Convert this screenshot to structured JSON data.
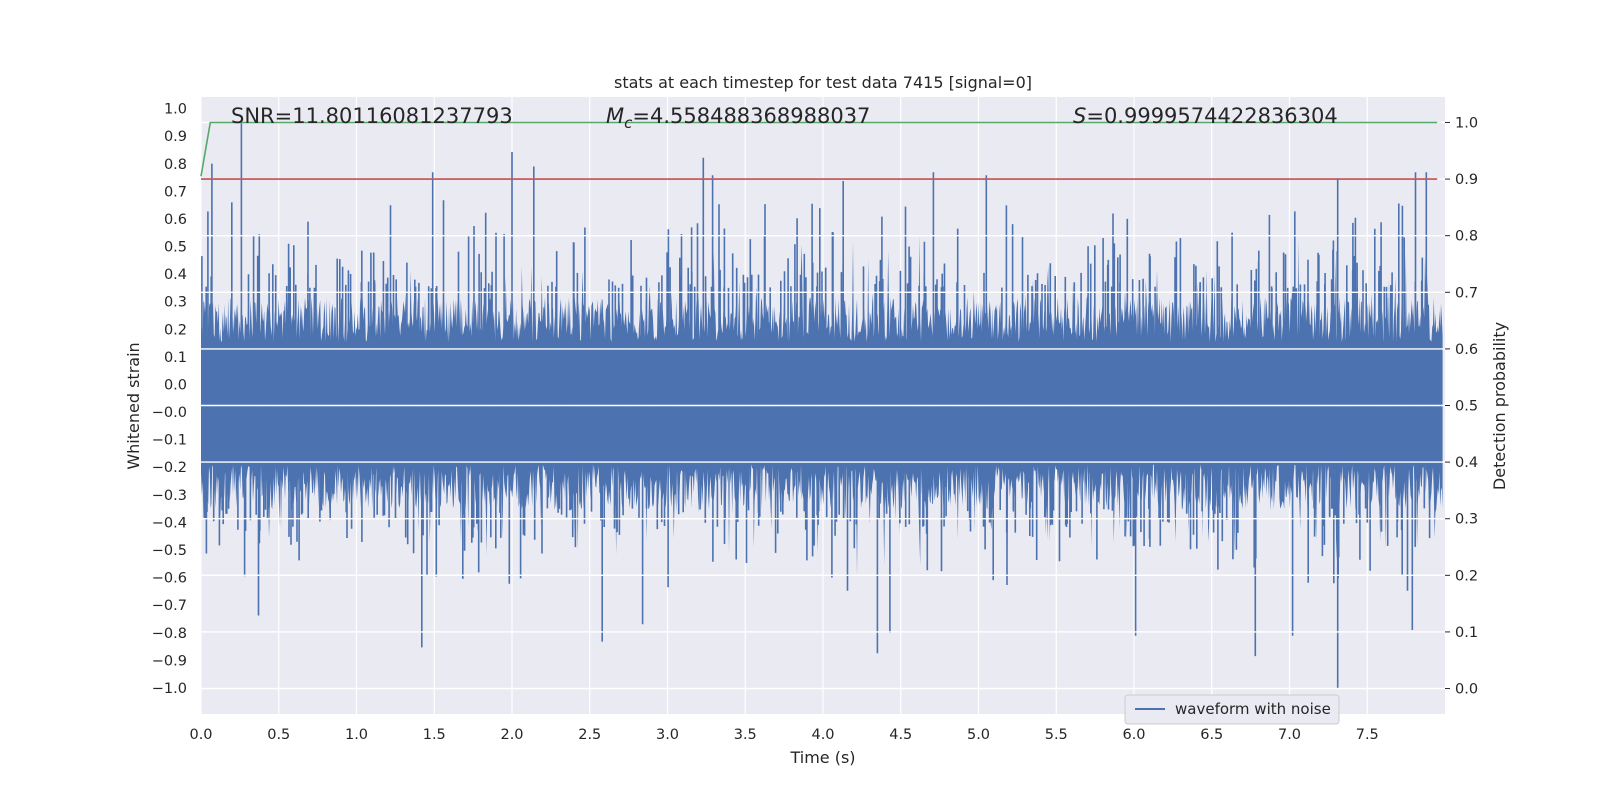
{
  "chart_data": {
    "type": "line",
    "title": "stats at each timestep for test data 7415 [signal=0]",
    "xlabel": "Time (s)",
    "ylabel": "Whitened strain",
    "y2label": "Detection probability",
    "xlim": [
      0.0,
      8.0
    ],
    "ylim": [
      -1.09,
      1.04
    ],
    "y2lim": [
      -0.045,
      1.045
    ],
    "xticks": [
      "0.0",
      "0.5",
      "1.0",
      "1.5",
      "2.0",
      "2.5",
      "3.0",
      "3.5",
      "4.0",
      "4.5",
      "5.0",
      "5.5",
      "6.0",
      "6.5",
      "7.0",
      "7.5"
    ],
    "yticks": [
      "1.0",
      "0.9",
      "0.8",
      "0.7",
      "0.6",
      "0.5",
      "0.4",
      "0.3",
      "0.2",
      "0.1",
      "0.0",
      "−0.0",
      "−0.1",
      "−0.2",
      "−0.3",
      "−0.4",
      "−0.5",
      "−0.6",
      "−0.7",
      "−0.8",
      "−0.9",
      "−1.0"
    ],
    "y2ticks": [
      "1.0",
      "0.9",
      "0.8",
      "0.7",
      "0.6",
      "0.5",
      "0.4",
      "0.3",
      "0.2",
      "0.1",
      "0.0"
    ],
    "annotations": {
      "snr": "SNR=11.80116081237793",
      "mc_symbol": "M",
      "mc_sub": "c",
      "mc_value": "=4.558488368988037",
      "s_symbol": "S",
      "s_value": "=0.9999574422836304"
    },
    "legend": {
      "label": "waveform with noise",
      "position": "lower-right"
    },
    "series": [
      {
        "name": "waveform with noise",
        "axis": "left",
        "color": "#4c72b0",
        "description": "noise-dominated whitened strain sampled densely over 0-8 s; typical envelope about ±0.35 with spikes reaching roughly ±1.0",
        "notable_spikes": [
          {
            "t": 0.07,
            "v": 0.81
          },
          {
            "t": 0.26,
            "v": 0.95
          },
          {
            "t": 0.37,
            "v": -0.75
          },
          {
            "t": 1.42,
            "v": -0.86
          },
          {
            "t": 1.49,
            "v": 0.78
          },
          {
            "t": 2.0,
            "v": 0.85
          },
          {
            "t": 2.14,
            "v": 0.8
          },
          {
            "t": 2.58,
            "v": -0.84
          },
          {
            "t": 2.84,
            "v": -0.78
          },
          {
            "t": 3.23,
            "v": 0.83
          },
          {
            "t": 3.29,
            "v": 0.77
          },
          {
            "t": 4.13,
            "v": 0.75
          },
          {
            "t": 4.35,
            "v": -0.88
          },
          {
            "t": 4.43,
            "v": -0.81
          },
          {
            "t": 4.71,
            "v": 0.78
          },
          {
            "t": 5.05,
            "v": 0.77
          },
          {
            "t": 6.01,
            "v": -0.82
          },
          {
            "t": 6.78,
            "v": -0.89
          },
          {
            "t": 7.02,
            "v": -0.82
          },
          {
            "t": 7.31,
            "v": -1.0
          },
          {
            "t": 7.31,
            "v": 0.76
          },
          {
            "t": 7.79,
            "v": -0.8
          },
          {
            "t": 7.81,
            "v": 0.78
          },
          {
            "t": 7.88,
            "v": 0.78
          }
        ],
        "envelope": 0.35
      },
      {
        "name": "detection probability",
        "axis": "right",
        "color": "#55a868",
        "x": [
          0.0,
          0.06,
          7.95
        ],
        "values": [
          0.905,
          1.0,
          1.0
        ]
      },
      {
        "name": "threshold",
        "axis": "right",
        "color": "#c44e52",
        "x": [
          0.0,
          7.95
        ],
        "values": [
          0.9,
          0.9
        ]
      }
    ]
  }
}
